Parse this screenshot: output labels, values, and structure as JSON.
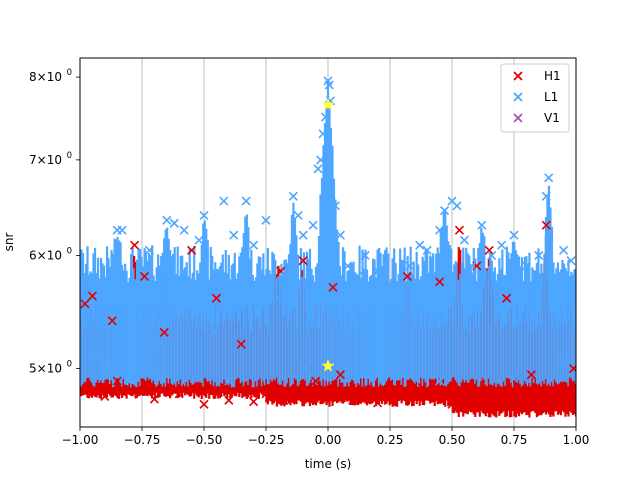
{
  "chart_data": {
    "type": "scatter",
    "title": "",
    "xlabel": "time (s)",
    "ylabel": "snr",
    "xlim": [
      -1.0,
      1.0
    ],
    "ylim": [
      4.55,
      8.25
    ],
    "yscale": "log",
    "grid": "vertical",
    "legend_position": "upper right",
    "x_ticks": [
      -1.0,
      -0.75,
      -0.5,
      -0.25,
      0.0,
      0.25,
      0.5,
      0.75,
      1.0
    ],
    "x_tick_labels": [
      "−1.00",
      "−0.75",
      "−0.50",
      "−0.25",
      "0.00",
      "0.25",
      "0.50",
      "0.75",
      "1.00"
    ],
    "y_ticks": [
      {
        "value": 5,
        "base": "5",
        "exp": "0"
      },
      {
        "value": 6,
        "base": "6",
        "exp": "0"
      },
      {
        "value": 7,
        "base": "7",
        "exp": "0"
      },
      {
        "value": 8,
        "base": "8",
        "exp": "0"
      }
    ],
    "series": [
      {
        "name": "H1",
        "color": "#e00000",
        "marker": "x",
        "points": [
          [
            -0.98,
            5.55
          ],
          [
            -0.95,
            5.62
          ],
          [
            -0.9,
            4.78
          ],
          [
            -0.87,
            5.4
          ],
          [
            -0.85,
            4.9
          ],
          [
            -0.78,
            6.1
          ],
          [
            -0.74,
            5.8
          ],
          [
            -0.7,
            4.76
          ],
          [
            -0.66,
            5.3
          ],
          [
            -0.6,
            4.8
          ],
          [
            -0.55,
            6.05
          ],
          [
            -0.5,
            4.72
          ],
          [
            -0.45,
            5.6
          ],
          [
            -0.4,
            4.75
          ],
          [
            -0.35,
            5.2
          ],
          [
            -0.3,
            4.74
          ],
          [
            -0.25,
            4.8
          ],
          [
            -0.19,
            5.85
          ],
          [
            -0.15,
            4.75
          ],
          [
            -0.1,
            5.95
          ],
          [
            -0.05,
            4.9
          ],
          [
            0.02,
            5.7
          ],
          [
            0.05,
            4.95
          ],
          [
            0.1,
            4.75
          ],
          [
            0.2,
            4.73
          ],
          [
            0.25,
            4.8
          ],
          [
            0.32,
            5.8
          ],
          [
            0.38,
            4.85
          ],
          [
            0.45,
            5.75
          ],
          [
            0.5,
            4.72
          ],
          [
            0.53,
            6.25
          ],
          [
            0.56,
            4.7
          ],
          [
            0.6,
            5.9
          ],
          [
            0.65,
            6.05
          ],
          [
            0.68,
            4.72
          ],
          [
            0.72,
            5.6
          ],
          [
            0.78,
            4.75
          ],
          [
            0.82,
            4.95
          ],
          [
            0.88,
            6.3
          ],
          [
            0.92,
            4.8
          ],
          [
            0.96,
            4.73
          ],
          [
            0.99,
            5.0
          ]
        ]
      },
      {
        "name": "L1",
        "color": "#4da6ff",
        "marker": "x",
        "points": [
          [
            -0.99,
            5.2
          ],
          [
            -0.97,
            5.4
          ],
          [
            -0.94,
            5.1
          ],
          [
            -0.92,
            5.6
          ],
          [
            -0.9,
            5.0
          ],
          [
            -0.85,
            6.25
          ],
          [
            -0.83,
            6.25
          ],
          [
            -0.8,
            5.4
          ],
          [
            -0.75,
            5.7
          ],
          [
            -0.72,
            6.05
          ],
          [
            -0.68,
            5.2
          ],
          [
            -0.65,
            6.35
          ],
          [
            -0.62,
            6.32
          ],
          [
            -0.58,
            6.25
          ],
          [
            -0.52,
            6.15
          ],
          [
            -0.5,
            6.4
          ],
          [
            -0.46,
            5.3
          ],
          [
            -0.42,
            6.55
          ],
          [
            -0.38,
            6.2
          ],
          [
            -0.33,
            6.55
          ],
          [
            -0.3,
            6.1
          ],
          [
            -0.25,
            6.35
          ],
          [
            -0.2,
            5.6
          ],
          [
            -0.17,
            5.8
          ],
          [
            -0.14,
            6.6
          ],
          [
            -0.12,
            6.4
          ],
          [
            -0.1,
            6.2
          ],
          [
            -0.06,
            6.3
          ],
          [
            -0.04,
            6.9
          ],
          [
            -0.03,
            7.0
          ],
          [
            -0.02,
            7.3
          ],
          [
            -0.01,
            7.5
          ],
          [
            0.0,
            7.95
          ],
          [
            0.005,
            7.9
          ],
          [
            0.01,
            7.7
          ],
          [
            0.03,
            6.5
          ],
          [
            0.05,
            6.2
          ],
          [
            0.08,
            5.9
          ],
          [
            0.12,
            5.8
          ],
          [
            0.15,
            6.0
          ],
          [
            0.2,
            5.85
          ],
          [
            0.25,
            5.7
          ],
          [
            0.3,
            5.6
          ],
          [
            0.33,
            5.9
          ],
          [
            0.37,
            6.1
          ],
          [
            0.4,
            6.05
          ],
          [
            0.45,
            6.25
          ],
          [
            0.47,
            6.45
          ],
          [
            0.5,
            6.55
          ],
          [
            0.52,
            6.5
          ],
          [
            0.55,
            6.15
          ],
          [
            0.58,
            5.9
          ],
          [
            0.62,
            6.3
          ],
          [
            0.66,
            6.0
          ],
          [
            0.7,
            6.1
          ],
          [
            0.75,
            6.2
          ],
          [
            0.8,
            5.9
          ],
          [
            0.85,
            6.0
          ],
          [
            0.88,
            6.6
          ],
          [
            0.89,
            6.8
          ],
          [
            0.92,
            5.8
          ],
          [
            0.95,
            6.05
          ],
          [
            0.98,
            5.95
          ],
          [
            -0.7,
            4.95
          ],
          [
            -0.4,
            4.9
          ],
          [
            -0.1,
            5.0
          ],
          [
            0.15,
            4.95
          ],
          [
            0.45,
            4.9
          ],
          [
            0.75,
            4.92
          ],
          [
            0.95,
            5.05
          ]
        ]
      },
      {
        "name": "V1",
        "color": "#9b59b6",
        "marker": "x",
        "points": []
      }
    ],
    "highlights": [
      {
        "x": 0.0,
        "y": 7.65,
        "marker": "star",
        "color": "#ffff33"
      },
      {
        "x": 0.0,
        "y": 5.02,
        "marker": "star",
        "color": "#ffff33"
      }
    ]
  }
}
